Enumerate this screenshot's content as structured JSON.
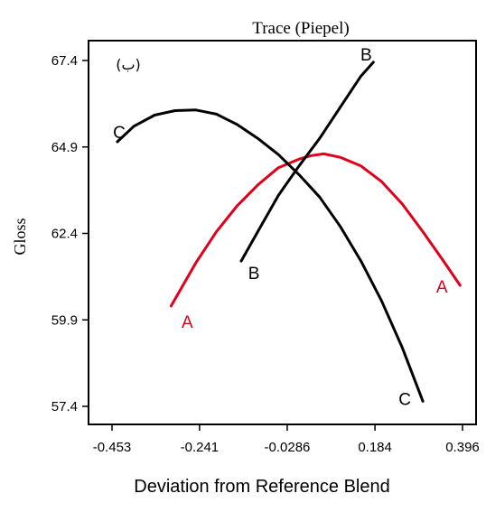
{
  "chart_data": {
    "type": "line",
    "title": "Trace (Piepel)",
    "panel_label": "(ب)",
    "xlabel": "Deviation from Reference Blend",
    "ylabel": "Gloss",
    "xlim": [
      -0.453,
      0.396
    ],
    "ylim": [
      57.4,
      67.4
    ],
    "x_ticks": [
      "-0.453",
      "-0.241",
      "-0.0286",
      "0.184",
      "0.396"
    ],
    "y_ticks": [
      "57.4",
      "59.9",
      "62.4",
      "64.9",
      "67.4"
    ],
    "grid": false,
    "colors": {
      "A": "#e0001b",
      "B": "#000000",
      "C": "#000000"
    },
    "series": [
      {
        "name": "A",
        "end_labels": [
          "A",
          "A"
        ],
        "x": [
          -0.31,
          -0.25,
          -0.2,
          -0.15,
          -0.1,
          -0.05,
          0.0,
          0.03,
          0.06,
          0.1,
          0.15,
          0.2,
          0.25,
          0.3,
          0.35,
          0.39
        ],
        "y": [
          60.3,
          61.55,
          62.45,
          63.2,
          63.8,
          64.3,
          64.55,
          64.65,
          64.7,
          64.6,
          64.35,
          63.9,
          63.25,
          62.45,
          61.6,
          60.9
        ]
      },
      {
        "name": "B",
        "end_labels": [
          "B",
          "B"
        ],
        "x": [
          -0.14,
          -0.1,
          -0.05,
          0.0,
          0.05,
          0.1,
          0.15,
          0.18
        ],
        "y": [
          61.6,
          62.45,
          63.5,
          64.35,
          65.15,
          66.05,
          66.95,
          67.35
        ]
      },
      {
        "name": "C",
        "end_labels": [
          "C",
          "C"
        ],
        "x": [
          -0.44,
          -0.4,
          -0.35,
          -0.3,
          -0.25,
          -0.2,
          -0.15,
          -0.1,
          -0.05,
          0.0,
          0.05,
          0.1,
          0.15,
          0.2,
          0.25,
          0.3
        ],
        "y": [
          65.05,
          65.5,
          65.82,
          65.95,
          65.97,
          65.85,
          65.55,
          65.15,
          64.68,
          64.1,
          63.45,
          62.6,
          61.6,
          60.45,
          59.1,
          57.55
        ]
      }
    ]
  }
}
